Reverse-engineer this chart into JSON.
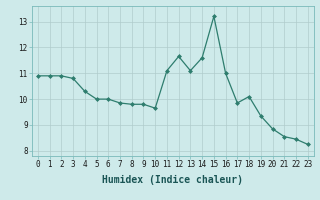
{
  "x": [
    0,
    1,
    2,
    3,
    4,
    5,
    6,
    7,
    8,
    9,
    10,
    11,
    12,
    13,
    14,
    15,
    16,
    17,
    18,
    19,
    20,
    21,
    22,
    23
  ],
  "y": [
    10.9,
    10.9,
    10.9,
    10.8,
    10.3,
    10.0,
    10.0,
    9.85,
    9.8,
    9.8,
    9.65,
    11.1,
    11.65,
    11.1,
    11.6,
    13.2,
    11.0,
    9.85,
    10.1,
    9.35,
    8.85,
    8.55,
    8.45,
    8.25
  ],
  "line_color": "#2e7d6e",
  "marker": "D",
  "marker_size": 2.0,
  "bg_color": "#ceeaea",
  "grid_color": "#b0cccc",
  "xlabel": "Humidex (Indice chaleur)",
  "xlim": [
    -0.5,
    23.5
  ],
  "ylim": [
    7.8,
    13.6
  ],
  "yticks": [
    8,
    9,
    10,
    11,
    12,
    13
  ],
  "xticks": [
    0,
    1,
    2,
    3,
    4,
    5,
    6,
    7,
    8,
    9,
    10,
    11,
    12,
    13,
    14,
    15,
    16,
    17,
    18,
    19,
    20,
    21,
    22,
    23
  ],
  "tick_fontsize": 5.5,
  "label_fontsize": 7.0
}
